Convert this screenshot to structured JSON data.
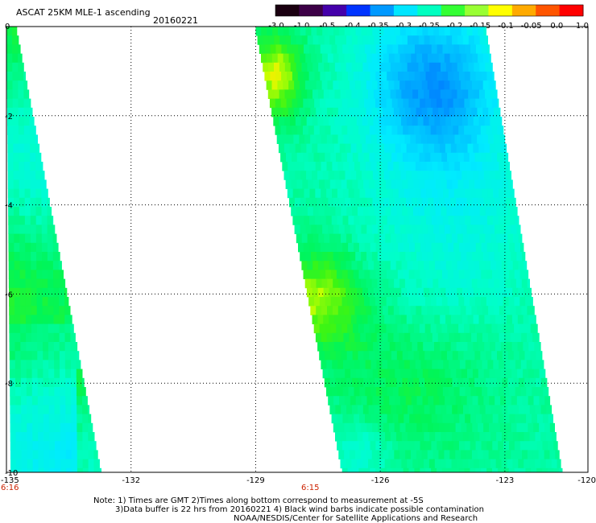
{
  "header": {
    "title": "ASCAT 25KM MLE-1 ascending",
    "date": "20160221"
  },
  "colorbar": {
    "labels": [
      "-3.0",
      "-1.0",
      "-0.5",
      "-0.4",
      "-0.35",
      "-0.3",
      "-0.25",
      "-0.2",
      "-0.15",
      "-0.1",
      "-0.05",
      "0.0",
      "1.0"
    ],
    "colors": [
      "#1a0010",
      "#3c0046",
      "#4400aa",
      "#0033ff",
      "#0099ff",
      "#00e6ff",
      "#00ffc0",
      "#33ff33",
      "#99ff33",
      "#ffff00",
      "#ffaa00",
      "#ff5500",
      "#ff0000"
    ]
  },
  "axes": {
    "x_ticks": [
      "-135",
      "-132",
      "-129",
      "-126",
      "-123",
      "-120"
    ],
    "y_ticks": [
      "0",
      "-2",
      "-4",
      "-6",
      "-8",
      "-10"
    ],
    "x_range": [
      -135,
      -123
    ],
    "y_range": [
      0,
      -10
    ]
  },
  "pass_times": [
    "6:16",
    "6:15"
  ],
  "swaths": [
    {
      "name": "west-swath",
      "lon_left_top": -135.0,
      "lon_right_top": -134.75,
      "lon_left_bottom": -134.9,
      "lon_right_bottom": -132.7
    },
    {
      "name": "east-swath",
      "lon_left_top": -129.0,
      "lon_right_top": -123.45,
      "lon_left_bottom": -126.9,
      "lon_right_bottom": -121.6
    }
  ],
  "notes": {
    "line1": "Note: 1) Times are GMT 2)Times along bottom correspond to measurement at -5S",
    "line2": "3)Data buffer is 22 hrs from 20160221 4) Black wind barbs indicate possible contamination",
    "line3": "NOAA/NESDIS/Center for Satellite Applications and Research"
  }
}
